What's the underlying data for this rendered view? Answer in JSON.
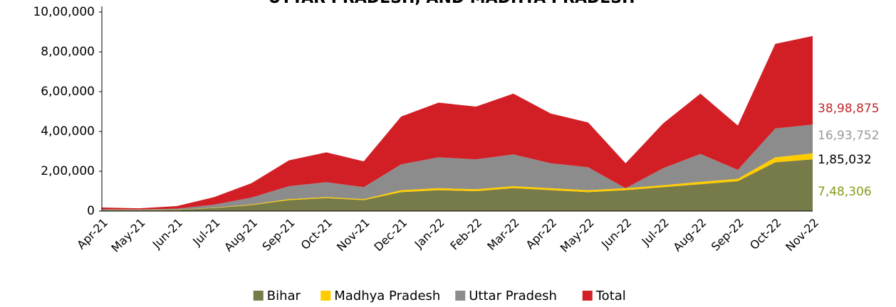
{
  "chart_data": {
    "type": "stacked_area",
    "title": "UTTAR PRADESH, AND MADHYA PRADESH",
    "categories": [
      "Apr-21",
      "May-21",
      "Jun-21",
      "Jul-21",
      "Aug-21",
      "Sep-21",
      "Oct-21",
      "Nov-21",
      "Dec-21",
      "Jan-22",
      "Feb-22",
      "Mar-22",
      "Apr-22",
      "May-22",
      "Jun-22",
      "Jul-22",
      "Aug-22",
      "Sep-22",
      "Oct-22",
      "Nov-22"
    ],
    "series": [
      {
        "name": "Bihar",
        "color": "#777a49",
        "end_label": "7,48,306",
        "end_label_color": "#8a9a1a",
        "values": [
          5000,
          4000,
          6000,
          15000,
          30000,
          55000,
          65000,
          55000,
          95000,
          105000,
          100000,
          115000,
          105000,
          95000,
          105000,
          120000,
          135000,
          150000,
          245000,
          260000
        ]
      },
      {
        "name": "Madhya Pradesh",
        "color": "#ffcc00",
        "end_label": "1,85,032",
        "end_label_color": "#000000",
        "values": [
          1000,
          1000,
          1000,
          2000,
          3000,
          5000,
          5000,
          5000,
          10000,
          10000,
          10000,
          10000,
          10000,
          10000,
          10000,
          10000,
          12000,
          12000,
          25000,
          30000
        ]
      },
      {
        "name": "Uttar Pradesh",
        "color": "#8c8c8c",
        "end_label": "16,93,752",
        "end_label_color": "#999999",
        "values": [
          3000,
          3000,
          5000,
          15000,
          35000,
          65000,
          75000,
          60000,
          130000,
          155000,
          150000,
          160000,
          125000,
          115000,
          0,
          85000,
          140000,
          45000,
          145000,
          145000
        ]
      },
      {
        "name": "Total",
        "color": "#d21f26",
        "end_label": "38,98,875",
        "end_label_color": "#c0282d",
        "values": [
          9000,
          6000,
          13000,
          38000,
          72000,
          130000,
          150000,
          130000,
          240000,
          275000,
          265000,
          305000,
          250000,
          225000,
          125000,
          225000,
          303000,
          223000,
          425000,
          445000
        ]
      }
    ],
    "ylim": [
      0,
      1000000
    ],
    "yticks": [
      0,
      {
        "value": 200000,
        "label": "2,00,000"
      },
      {
        "value": 400000,
        "label": "4,00,000"
      },
      {
        "value": 600000,
        "label": "6,00,000"
      },
      {
        "value": 800000,
        "label": "8,00,000"
      },
      {
        "value": 1000000,
        "label": "10,00,000"
      }
    ],
    "legend": "bottom"
  }
}
